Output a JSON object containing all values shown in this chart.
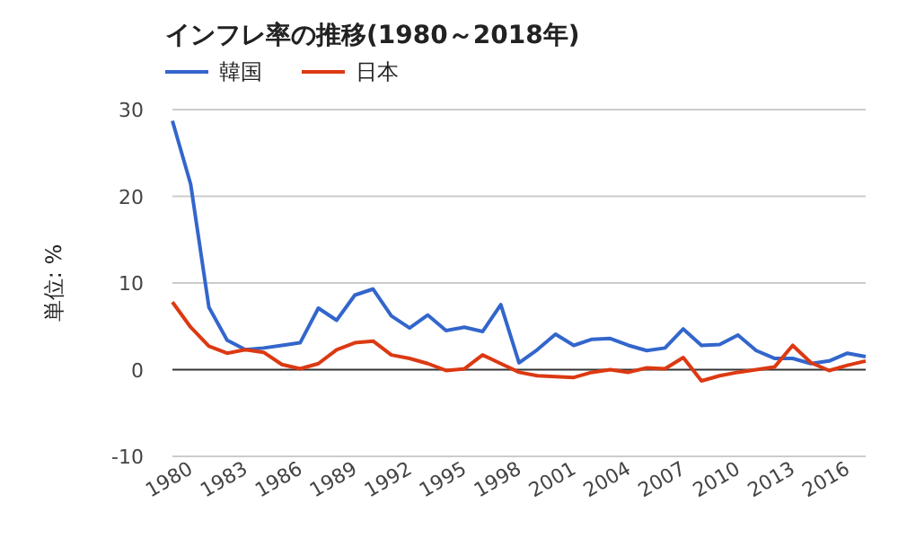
{
  "chart_data": {
    "type": "line",
    "title": "インフレ率の推移(1980～2018年)",
    "ylabel": "単位: %",
    "x": [
      1980,
      1981,
      1982,
      1983,
      1984,
      1985,
      1986,
      1987,
      1988,
      1989,
      1990,
      1991,
      1992,
      1993,
      1994,
      1995,
      1996,
      1997,
      1998,
      1999,
      2000,
      2001,
      2002,
      2003,
      2004,
      2005,
      2006,
      2007,
      2008,
      2009,
      2010,
      2011,
      2012,
      2013,
      2014,
      2015,
      2016,
      2017,
      2018
    ],
    "series": [
      {
        "name": "韓国",
        "color": "#3366cc",
        "values": [
          28.7,
          21.4,
          7.2,
          3.4,
          2.3,
          2.5,
          2.8,
          3.1,
          7.1,
          5.7,
          8.6,
          9.3,
          6.2,
          4.8,
          6.3,
          4.5,
          4.9,
          4.4,
          7.5,
          0.8,
          2.3,
          4.1,
          2.8,
          3.5,
          3.6,
          2.8,
          2.2,
          2.5,
          4.7,
          2.8,
          2.9,
          4.0,
          2.2,
          1.3,
          1.3,
          0.7,
          1.0,
          1.9,
          1.5
        ]
      },
      {
        "name": "日本",
        "color": "#dc3912",
        "values": [
          7.8,
          4.9,
          2.7,
          1.9,
          2.3,
          2.0,
          0.6,
          0.1,
          0.7,
          2.3,
          3.1,
          3.3,
          1.7,
          1.3,
          0.7,
          -0.1,
          0.1,
          1.7,
          0.7,
          -0.3,
          -0.7,
          -0.8,
          -0.9,
          -0.3,
          0.0,
          -0.3,
          0.2,
          0.1,
          1.4,
          -1.3,
          -0.7,
          -0.3,
          0.0,
          0.3,
          2.8,
          0.8,
          -0.1,
          0.5,
          1.0
        ]
      }
    ],
    "xlim": [
      1980,
      2018
    ],
    "xticks": [
      1980,
      1983,
      1986,
      1989,
      1992,
      1995,
      1998,
      2001,
      2004,
      2007,
      2010,
      2013,
      2016
    ],
    "ylim": [
      -10,
      30
    ],
    "yticks": [
      -10,
      0,
      10,
      20,
      30
    ],
    "grid": "y",
    "legend": "top left"
  }
}
